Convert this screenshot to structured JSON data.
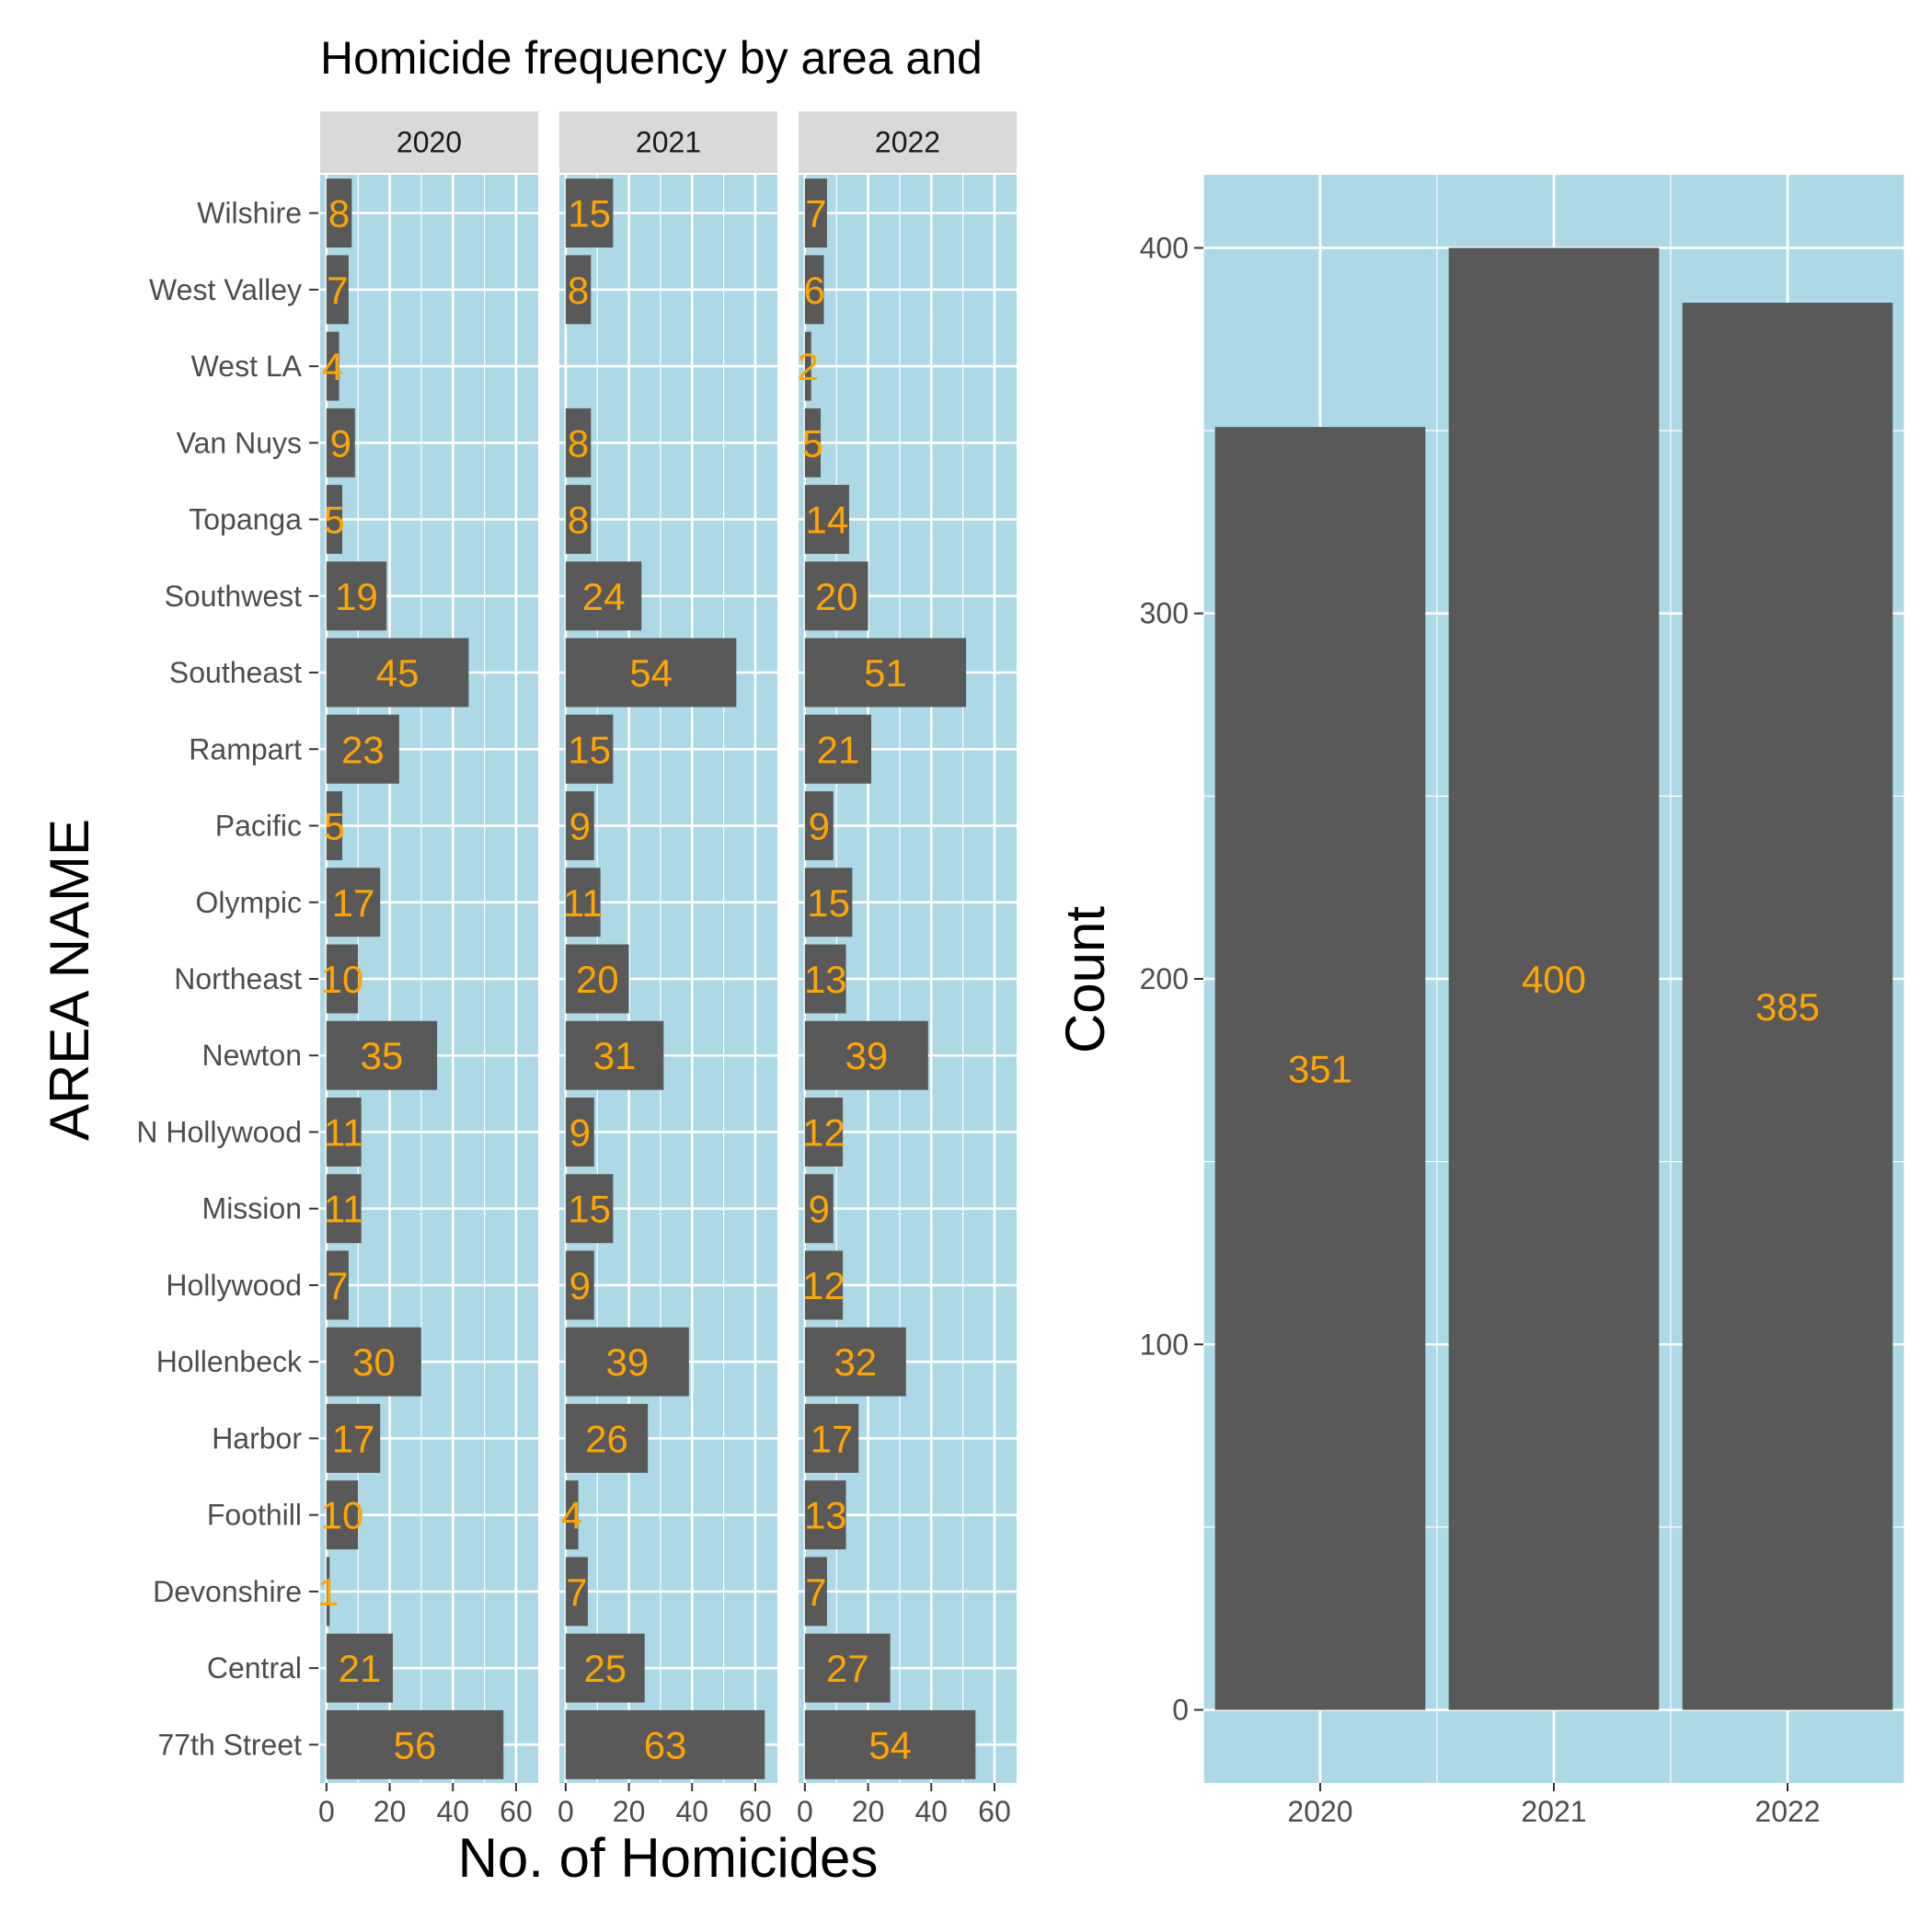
{
  "chart_data": [
    {
      "type": "bar",
      "orientation": "horizontal",
      "title": "Homicide frequency by area and",
      "xlabel": "No. of Homicides",
      "ylabel": "AREA NAME",
      "categories": [
        "Wilshire",
        "West Valley",
        "West LA",
        "Van Nuys",
        "Topanga",
        "Southwest",
        "Southeast",
        "Rampart",
        "Pacific",
        "Olympic",
        "Northeast",
        "Newton",
        "N Hollywood",
        "Mission",
        "Hollywood",
        "Hollenbeck",
        "Harbor",
        "Foothill",
        "Devonshire",
        "Central",
        "77th Street"
      ],
      "facets": [
        "2020",
        "2021",
        "2022"
      ],
      "series": [
        {
          "facet": "2020",
          "values": [
            8,
            7,
            4,
            9,
            5,
            19,
            45,
            23,
            5,
            17,
            10,
            35,
            11,
            11,
            7,
            30,
            17,
            10,
            1,
            21,
            56
          ]
        },
        {
          "facet": "2021",
          "values": [
            15,
            8,
            null,
            8,
            8,
            24,
            54,
            15,
            9,
            11,
            20,
            31,
            9,
            15,
            9,
            39,
            26,
            4,
            7,
            25,
            63
          ]
        },
        {
          "facet": "2022",
          "values": [
            7,
            6,
            2,
            5,
            14,
            20,
            51,
            21,
            9,
            15,
            13,
            39,
            12,
            9,
            12,
            32,
            17,
            13,
            7,
            27,
            54
          ]
        }
      ],
      "xticks": [
        0,
        20,
        40,
        60
      ],
      "xlim": [
        -2,
        67
      ],
      "panel_background": "#ADD8E6",
      "bar_color": "#595959",
      "label_color": "#FFA500",
      "grid": true
    },
    {
      "type": "bar",
      "ylabel": "Count",
      "xlabel": "",
      "categories": [
        "2020",
        "2021",
        "2022"
      ],
      "values": [
        351,
        400,
        385
      ],
      "yticks": [
        0,
        100,
        200,
        300,
        400
      ],
      "ylim": [
        -20,
        420
      ],
      "panel_background": "#ADD8E6",
      "bar_color": "#595959",
      "label_color": "#FFA500",
      "grid": true
    }
  ]
}
